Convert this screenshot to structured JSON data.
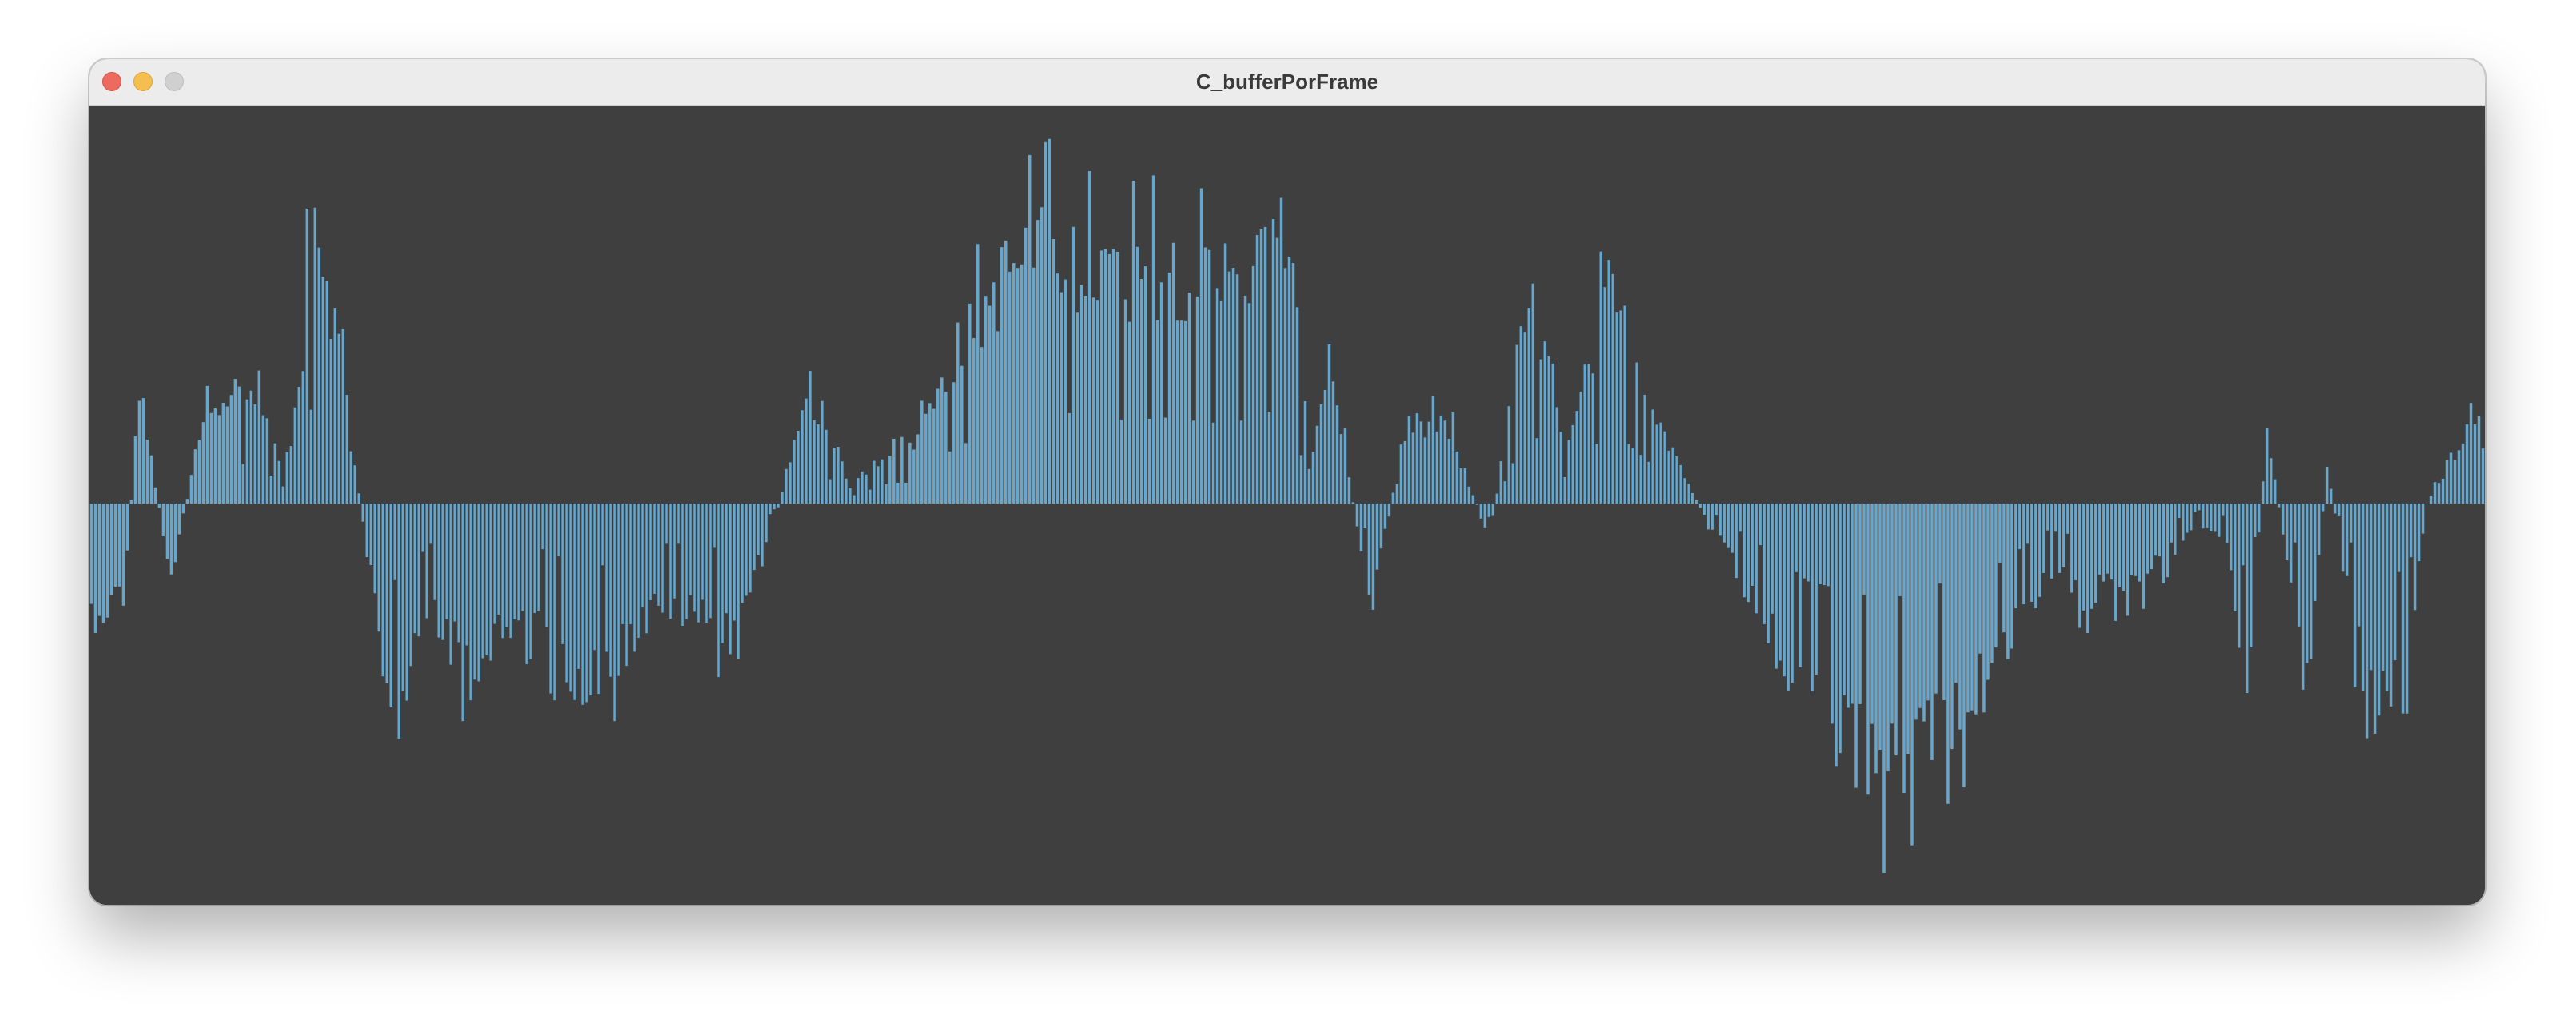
{
  "window": {
    "title": "C_bufferPorFrame"
  },
  "controls": {
    "close": "close",
    "minimize": "minimize",
    "zoom": "zoom"
  },
  "colors": {
    "background": "#3f3f3f",
    "bar": "#6aa6c9",
    "titlebar": "#ececec"
  },
  "chart_data": {
    "type": "bar",
    "ylim": [
      -1,
      1
    ],
    "bar_count": 600,
    "envelope_keypoints": [
      [
        0,
        -0.3
      ],
      [
        8,
        -0.25
      ],
      [
        12,
        0.3
      ],
      [
        20,
        -0.2
      ],
      [
        26,
        0.15
      ],
      [
        30,
        0.3
      ],
      [
        40,
        0.28
      ],
      [
        45,
        0.2
      ],
      [
        48,
        0.05
      ],
      [
        52,
        0.3
      ],
      [
        56,
        0.8
      ],
      [
        60,
        0.55
      ],
      [
        66,
        0.1
      ],
      [
        70,
        -0.2
      ],
      [
        75,
        -0.6
      ],
      [
        85,
        -0.3
      ],
      [
        95,
        -0.45
      ],
      [
        110,
        -0.3
      ],
      [
        125,
        -0.5
      ],
      [
        140,
        -0.3
      ],
      [
        150,
        -0.3
      ],
      [
        160,
        -0.35
      ],
      [
        168,
        -0.15
      ],
      [
        175,
        0.1
      ],
      [
        180,
        0.3
      ],
      [
        190,
        0.05
      ],
      [
        200,
        0.15
      ],
      [
        205,
        0.15
      ],
      [
        210,
        0.3
      ],
      [
        220,
        0.45
      ],
      [
        230,
        0.62
      ],
      [
        240,
        0.68
      ],
      [
        250,
        0.62
      ],
      [
        260,
        0.6
      ],
      [
        270,
        0.62
      ],
      [
        280,
        0.58
      ],
      [
        290,
        0.6
      ],
      [
        300,
        0.72
      ],
      [
        305,
        0.1
      ],
      [
        310,
        0.4
      ],
      [
        320,
        -0.25
      ],
      [
        330,
        0.2
      ],
      [
        340,
        0.2
      ],
      [
        350,
        -0.1
      ],
      [
        360,
        0.55
      ],
      [
        370,
        0.15
      ],
      [
        380,
        0.55
      ],
      [
        390,
        0.3
      ],
      [
        400,
        0.05
      ],
      [
        410,
        -0.15
      ],
      [
        420,
        -0.35
      ],
      [
        430,
        -0.58
      ],
      [
        440,
        -0.65
      ],
      [
        450,
        -0.72
      ],
      [
        460,
        -0.62
      ],
      [
        475,
        -0.5
      ],
      [
        490,
        -0.2
      ],
      [
        500,
        -0.25
      ],
      [
        515,
        -0.2
      ],
      [
        528,
        -0.05
      ],
      [
        535,
        -0.1
      ],
      [
        540,
        -0.55
      ],
      [
        545,
        0.2
      ],
      [
        555,
        -0.5
      ],
      [
        560,
        0.1
      ],
      [
        570,
        -0.55
      ],
      [
        580,
        -0.5
      ],
      [
        585,
        0.0
      ],
      [
        595,
        0.2
      ],
      [
        599,
        0.15
      ]
    ]
  }
}
